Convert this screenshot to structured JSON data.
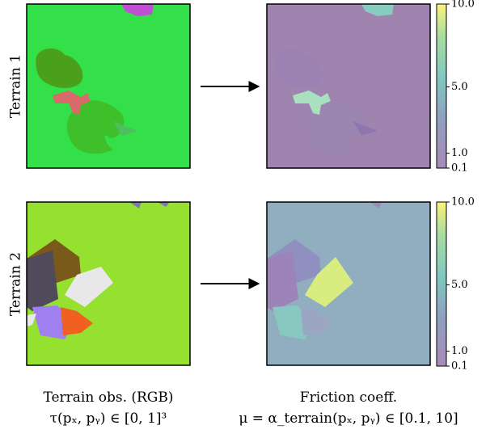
{
  "rows": [
    {
      "label": "Terrain 1",
      "colorbar": {
        "lim": [
          0.1,
          10
        ],
        "ticks": [
          {
            "value": 10,
            "label": "10.0"
          },
          {
            "value": 5,
            "label": "5.0"
          },
          {
            "value": 1,
            "label": "1.0"
          },
          0.1
        ]
      }
    },
    {
      "label": "Terrain 2",
      "colorbar": {
        "lim": [
          0.1,
          10
        ],
        "ticks": [
          {
            "value": 10,
            "label": "10.0"
          },
          {
            "value": 5,
            "label": "5.0"
          },
          {
            "value": 1,
            "label": "1.0"
          },
          0.1
        ]
      }
    }
  ],
  "captions": {
    "left": {
      "title": "Terrain obs. (RGB)",
      "formula": "τ(pₓ, pᵧ) ∈ [0, 1]³"
    },
    "right": {
      "title": "Friction coeff.",
      "formula": "μ = α_terrain(pₓ, pᵧ) ∈ [0.1, 10]"
    }
  }
}
